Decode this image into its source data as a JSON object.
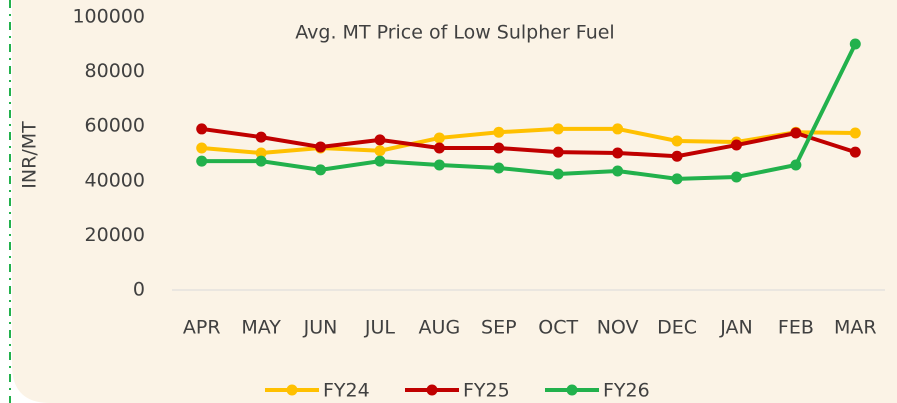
{
  "chart_data": {
    "type": "line",
    "title": "Avg. MT Price of Low Sulpher Fuel",
    "y_label": "INR/MT",
    "categories": [
      "APR",
      "MAY",
      "JUN",
      "JUL",
      "AUG",
      "SEP",
      "OCT",
      "NOV",
      "DEC",
      "JAN",
      "FEB",
      "MAR"
    ],
    "series": [
      {
        "name": "FY24",
        "color": "#ffc000",
        "values": [
          52000,
          50200,
          52000,
          51000,
          55700,
          57800,
          59000,
          59000,
          54600,
          54200,
          57800,
          57500
        ]
      },
      {
        "name": "FY25",
        "color": "#c00000",
        "values": [
          59000,
          56000,
          52400,
          55000,
          52000,
          52000,
          50500,
          50200,
          49000,
          53100,
          57500,
          50500
        ]
      },
      {
        "name": "FY26",
        "color": "#22b14c",
        "values": [
          47200,
          47200,
          44000,
          47200,
          45800,
          44700,
          42500,
          43600,
          40700,
          41400,
          45800,
          90100
        ]
      }
    ],
    "ylim": [
      0,
      100000
    ],
    "yticks": [
      0,
      20000,
      40000,
      60000,
      80000,
      100000
    ],
    "grid": false,
    "legend": "bottom"
  }
}
